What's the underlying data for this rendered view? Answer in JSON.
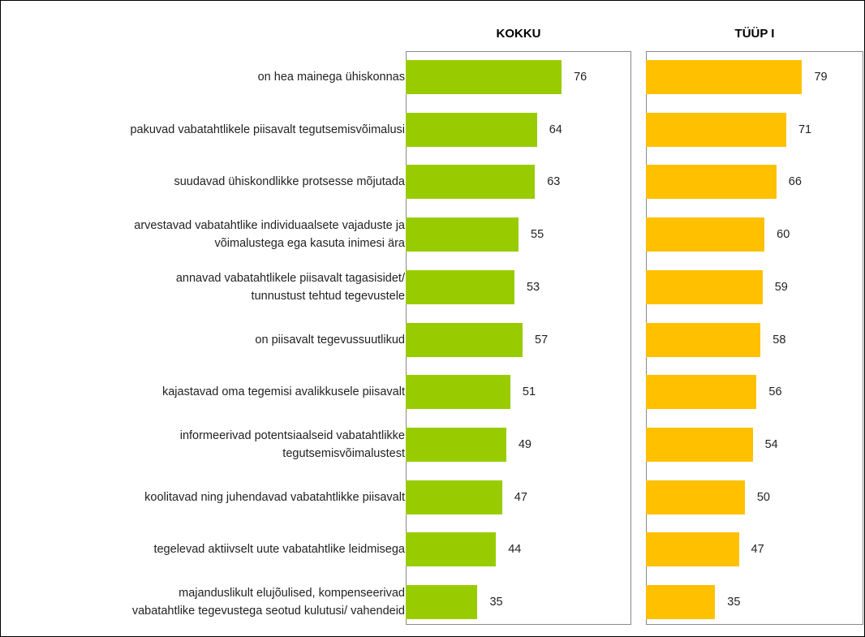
{
  "chart_data": [
    {
      "type": "bar",
      "title": "KOKKU",
      "categories": [
        "on hea mainega ühiskonnas",
        "pakuvad vabatahtlikele piisavalt tegutsemisvõimalusi",
        "suudavad ühiskondlikke protsesse mõjutada",
        "arvestavad vabatahtlike individuaalsete vajaduste ja\nvõimalustega ega kasuta inimesi ära",
        "annavad vabatahtlikele piisavalt tagasisidet/\ntunnustust tehtud tegevustele",
        "on piisavalt tegevussuutlikud",
        "kajastavad oma tegemisi avalikkusele piisavalt",
        "informeerivad potentsiaalseid vabatahtlikke\ntegutsemisvõimalustest",
        "koolitavad ning juhendavad vabatahtlikke piisavalt",
        "tegelevad aktiivselt uute vabatahtlike leidmisega",
        "majanduslikult elujõulised, kompenseerivad\nvabatahtlike tegevustega seotud kulutusi/ vahendeid"
      ],
      "values": [
        76,
        64,
        63,
        55,
        53,
        57,
        51,
        49,
        47,
        44,
        35
      ],
      "color": "#99cc00",
      "xlim": [
        0,
        110
      ]
    },
    {
      "type": "bar",
      "title": "TÜÜP I",
      "values": [
        79,
        71,
        66,
        60,
        59,
        58,
        56,
        54,
        50,
        47,
        35
      ],
      "color": "#ffc000",
      "xlim": [
        0,
        110
      ]
    }
  ]
}
